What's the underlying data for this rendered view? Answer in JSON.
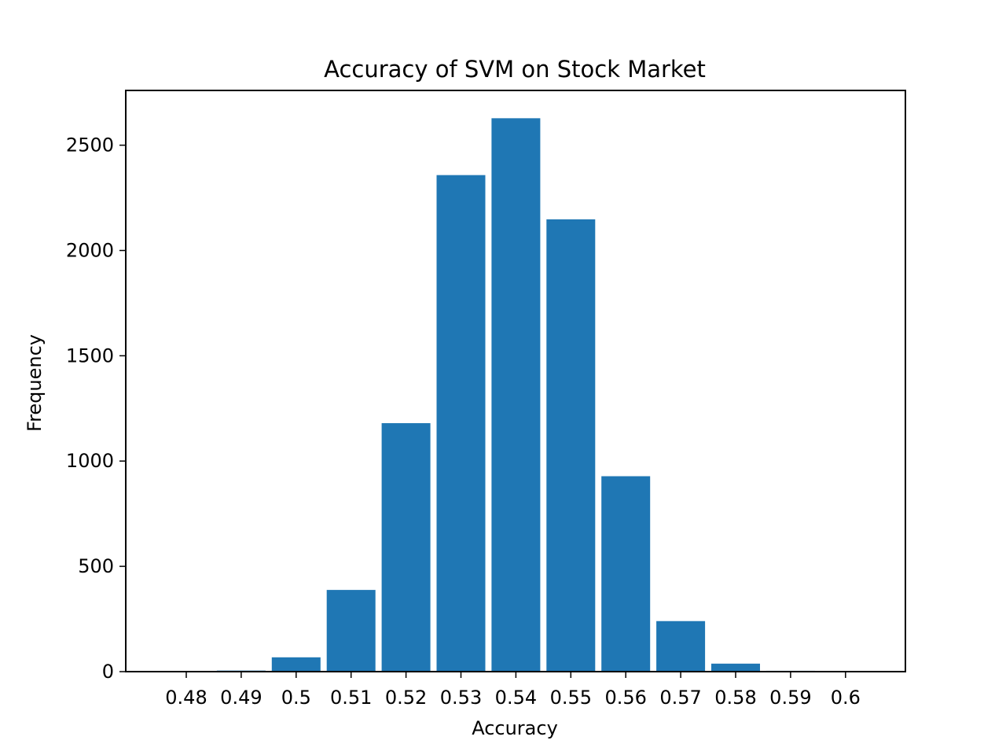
{
  "chart_data": {
    "type": "bar",
    "title": "Accuracy of SVM on Stock Market",
    "xlabel": "Accuracy",
    "ylabel": "Frequency",
    "categories": [
      "0.48",
      "0.49",
      "0.5",
      "0.51",
      "0.52",
      "0.53",
      "0.54",
      "0.55",
      "0.56",
      "0.57",
      "0.58",
      "0.59",
      "0.6"
    ],
    "values": [
      1,
      5,
      68,
      388,
      1180,
      2358,
      2628,
      2148,
      928,
      240,
      38,
      4,
      1
    ],
    "y_ticks": [
      0,
      500,
      1000,
      1500,
      2000,
      2500
    ],
    "ylim": [
      0,
      2760
    ],
    "grid": false,
    "bar_color": "#1f77b4"
  }
}
